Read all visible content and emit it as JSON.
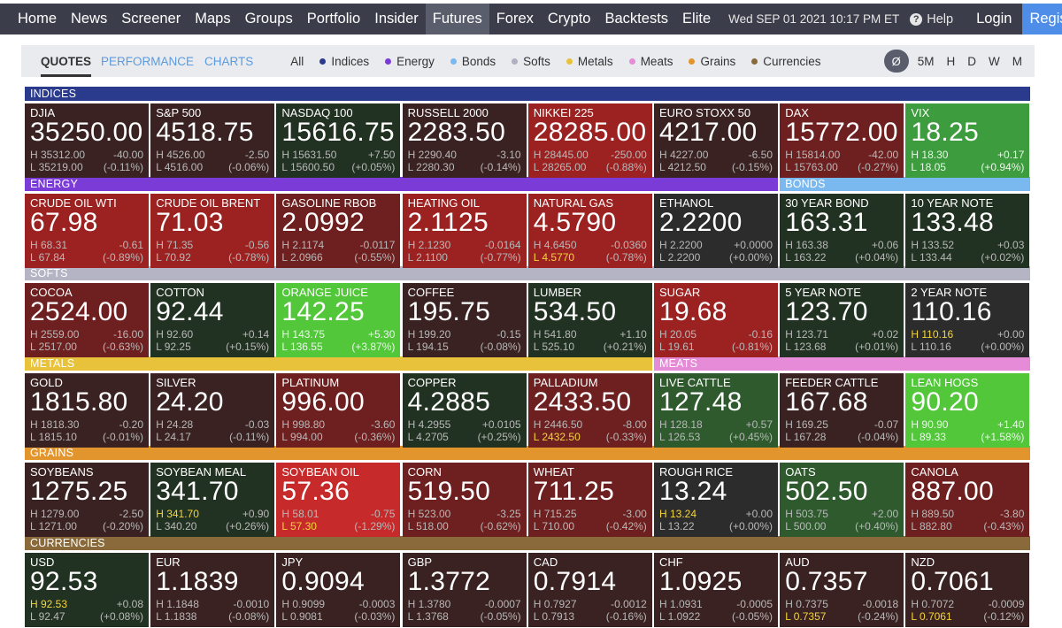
{
  "nav": {
    "items": [
      "Home",
      "News",
      "Screener",
      "Maps",
      "Groups",
      "Portfolio",
      "Insider",
      "Futures",
      "Forex",
      "Crypto",
      "Backtests",
      "Elite"
    ],
    "active": "Futures",
    "datetime": "Wed SEP 01 2021 10:17 PM ET",
    "help_label": "Help",
    "login_label": "Login",
    "register_label": "Register"
  },
  "tabs": {
    "quotes": "QUOTES",
    "performance": "PERFORMANCE",
    "charts": "CHARTS"
  },
  "filters": [
    {
      "label": "All",
      "color": ""
    },
    {
      "label": "Indices",
      "color": "#2a3a8c"
    },
    {
      "label": "Energy",
      "color": "#7a3bd6"
    },
    {
      "label": "Bonds",
      "color": "#7ab8f0"
    },
    {
      "label": "Softs",
      "color": "#b0b0c0"
    },
    {
      "label": "Metals",
      "color": "#e8c23a"
    },
    {
      "label": "Meats",
      "color": "#e58bd8"
    },
    {
      "label": "Grains",
      "color": "#e3952d"
    },
    {
      "label": "Currencies",
      "color": "#8a6a3a"
    }
  ],
  "timeframes": {
    "active": "Ø",
    "items": [
      "5M",
      "H",
      "D",
      "W",
      "M"
    ]
  },
  "colors": {
    "indices": "#2a3a8c",
    "energy": "#7a3bd6",
    "bonds": "#7ab8f0",
    "softs": "#b4b4c4",
    "metals": "#e8c23a",
    "meats": "#e58bd8",
    "grains": "#e3952d",
    "currencies": "#8a6a3a",
    "neutral": "#2c2c2c",
    "red_light": "#3a2222",
    "red_mid": "#6e1f1f",
    "red_strong": "#9c2222",
    "red_bright": "#c62a2a",
    "green_light": "#223222",
    "green_mid": "#2e5a2e",
    "green_strong": "#3d9c3d",
    "green_bright": "#52c73a"
  },
  "sections": [
    {
      "label": "INDICES",
      "color_key": "indices"
    },
    {
      "label": "ENERGY",
      "color_key": "energy"
    },
    {
      "label": "BONDS",
      "color_key": "bonds"
    },
    {
      "label": "SOFTS",
      "color_key": "softs"
    },
    {
      "label": "METALS",
      "color_key": "metals"
    },
    {
      "label": "MEATS",
      "color_key": "meats"
    },
    {
      "label": "GRAINS",
      "color_key": "grains"
    },
    {
      "label": "CURRENCIES",
      "color_key": "currencies"
    }
  ],
  "tiles": [
    {
      "name": "DJIA",
      "price": "35250.00",
      "high": "H 35312.00",
      "low": "L 35219.00",
      "change": "-40.00",
      "pct": "(-0.11%)",
      "tone": "red_light"
    },
    {
      "name": "S&P 500",
      "price": "4518.75",
      "high": "H 4526.00",
      "low": "L 4516.00",
      "change": "-2.50",
      "pct": "(-0.06%)",
      "tone": "red_light"
    },
    {
      "name": "NASDAQ 100",
      "price": "15616.75",
      "high": "H 15631.50",
      "low": "L 15600.50",
      "change": "+7.50",
      "pct": "(+0.05%)",
      "tone": "green_light"
    },
    {
      "name": "RUSSELL 2000",
      "price": "2283.50",
      "high": "H 2290.40",
      "low": "L 2280.30",
      "change": "-3.10",
      "pct": "(-0.14%)",
      "tone": "red_light"
    },
    {
      "name": "NIKKEI 225",
      "price": "28285.00",
      "high": "H 28445.00",
      "low": "L 28265.00",
      "change": "-250.00",
      "pct": "(-0.88%)",
      "tone": "red_strong"
    },
    {
      "name": "EURO STOXX 50",
      "price": "4217.00",
      "high": "H 4227.00",
      "low": "L 4212.50",
      "change": "-6.50",
      "pct": "(-0.15%)",
      "tone": "red_light"
    },
    {
      "name": "DAX",
      "price": "15772.00",
      "high": "H 15814.00",
      "low": "L 15763.00",
      "change": "-42.00",
      "pct": "(-0.27%)",
      "tone": "red_mid"
    },
    {
      "name": "VIX",
      "price": "18.25",
      "high": "H 18.30",
      "low": "L 18.05",
      "change": "+0.17",
      "pct": "(+0.94%)",
      "tone": "green_strong"
    },
    {
      "name": "CRUDE OIL WTI",
      "price": "67.98",
      "high": "H 68.31",
      "low": "L 67.84",
      "change": "-0.61",
      "pct": "(-0.89%)",
      "tone": "red_strong"
    },
    {
      "name": "CRUDE OIL BRENT",
      "price": "71.03",
      "high": "H 71.35",
      "low": "L 70.92",
      "change": "-0.56",
      "pct": "(-0.78%)",
      "tone": "red_strong"
    },
    {
      "name": "GASOLINE RBOB",
      "price": "2.0992",
      "high": "H 2.1174",
      "low": "L 2.0966",
      "change": "-0.0117",
      "pct": "(-0.55%)",
      "tone": "red_mid"
    },
    {
      "name": "HEATING OIL",
      "price": "2.1125",
      "high": "H 2.1230",
      "low": "L 2.1100",
      "change": "-0.0164",
      "pct": "(-0.77%)",
      "tone": "red_strong"
    },
    {
      "name": "NATURAL GAS",
      "price": "4.5790",
      "high": "H 4.6450",
      "low": "L 4.5770",
      "change": "-0.0360",
      "pct": "(-0.78%)",
      "tone": "red_strong",
      "low_hl": true
    },
    {
      "name": "ETHANOL",
      "price": "2.2200",
      "high": "H 2.2200",
      "low": "L 2.2200",
      "change": "+0.0000",
      "pct": "(+0.00%)",
      "tone": "neutral"
    },
    {
      "name": "30 YEAR BOND",
      "price": "163.31",
      "high": "H 163.38",
      "low": "L 163.22",
      "change": "+0.06",
      "pct": "(+0.04%)",
      "tone": "green_light"
    },
    {
      "name": "10 YEAR NOTE",
      "price": "133.48",
      "high": "H 133.52",
      "low": "L 133.44",
      "change": "+0.03",
      "pct": "(+0.02%)",
      "tone": "green_light"
    },
    {
      "name": "COCOA",
      "price": "2524.00",
      "high": "H 2559.00",
      "low": "L 2517.00",
      "change": "-16.00",
      "pct": "(-0.63%)",
      "tone": "red_mid"
    },
    {
      "name": "COTTON",
      "price": "92.44",
      "high": "H 92.60",
      "low": "L 92.25",
      "change": "+0.14",
      "pct": "(+0.15%)",
      "tone": "green_light"
    },
    {
      "name": "ORANGE JUICE",
      "price": "142.25",
      "high": "H 143.75",
      "low": "L 136.55",
      "change": "+5.30",
      "pct": "(+3.87%)",
      "tone": "green_bright"
    },
    {
      "name": "COFFEE",
      "price": "195.75",
      "high": "H 199.20",
      "low": "L 194.15",
      "change": "-0.15",
      "pct": "(-0.08%)",
      "tone": "red_light"
    },
    {
      "name": "LUMBER",
      "price": "534.50",
      "high": "H 541.80",
      "low": "L 525.10",
      "change": "+1.10",
      "pct": "(+0.21%)",
      "tone": "green_light"
    },
    {
      "name": "SUGAR",
      "price": "19.68",
      "high": "H 20.05",
      "low": "L 19.61",
      "change": "-0.16",
      "pct": "(-0.81%)",
      "tone": "red_strong"
    },
    {
      "name": "5 YEAR NOTE",
      "price": "123.70",
      "high": "H 123.71",
      "low": "L 123.68",
      "change": "+0.02",
      "pct": "(+0.01%)",
      "tone": "green_light"
    },
    {
      "name": "2 YEAR NOTE",
      "price": "110.16",
      "high": "H 110.16",
      "low": "L 110.16",
      "change": "+0.00",
      "pct": "(+0.00%)",
      "tone": "neutral",
      "high_hl": true
    },
    {
      "name": "GOLD",
      "price": "1815.80",
      "high": "H 1818.30",
      "low": "L 1815.10",
      "change": "-0.20",
      "pct": "(-0.01%)",
      "tone": "red_light"
    },
    {
      "name": "SILVER",
      "price": "24.20",
      "high": "H 24.28",
      "low": "L 24.17",
      "change": "-0.03",
      "pct": "(-0.11%)",
      "tone": "red_light"
    },
    {
      "name": "PLATINUM",
      "price": "996.00",
      "high": "H 998.80",
      "low": "L 994.00",
      "change": "-3.60",
      "pct": "(-0.36%)",
      "tone": "red_mid"
    },
    {
      "name": "COPPER",
      "price": "4.2885",
      "high": "H 4.2955",
      "low": "L 4.2705",
      "change": "+0.0105",
      "pct": "(+0.25%)",
      "tone": "green_light"
    },
    {
      "name": "PALLADIUM",
      "price": "2433.50",
      "high": "H 2446.50",
      "low": "L 2432.50",
      "change": "-8.00",
      "pct": "(-0.33%)",
      "tone": "red_mid",
      "low_hl": true
    },
    {
      "name": "LIVE CATTLE",
      "price": "127.48",
      "high": "H 128.18",
      "low": "L 126.53",
      "change": "+0.57",
      "pct": "(+0.45%)",
      "tone": "green_mid"
    },
    {
      "name": "FEEDER CATTLE",
      "price": "167.68",
      "high": "H 169.25",
      "low": "L 167.28",
      "change": "-0.07",
      "pct": "(-0.04%)",
      "tone": "red_light"
    },
    {
      "name": "LEAN HOGS",
      "price": "90.20",
      "high": "H 90.90",
      "low": "L 89.33",
      "change": "+1.40",
      "pct": "(+1.58%)",
      "tone": "green_bright"
    },
    {
      "name": "SOYBEANS",
      "price": "1275.25",
      "high": "H 1279.00",
      "low": "L 1271.00",
      "change": "-2.50",
      "pct": "(-0.20%)",
      "tone": "red_light"
    },
    {
      "name": "SOYBEAN MEAL",
      "price": "341.70",
      "high": "H 341.70",
      "low": "L 340.20",
      "change": "+0.90",
      "pct": "(+0.26%)",
      "tone": "green_light",
      "high_hl": true
    },
    {
      "name": "SOYBEAN OIL",
      "price": "57.36",
      "high": "H 58.01",
      "low": "L 57.30",
      "change": "-0.75",
      "pct": "(-1.29%)",
      "tone": "red_bright",
      "low_hl": true
    },
    {
      "name": "CORN",
      "price": "519.50",
      "high": "H 523.00",
      "low": "L 518.00",
      "change": "-3.25",
      "pct": "(-0.62%)",
      "tone": "red_mid"
    },
    {
      "name": "WHEAT",
      "price": "711.25",
      "high": "H 715.25",
      "low": "L 710.00",
      "change": "-3.00",
      "pct": "(-0.42%)",
      "tone": "red_mid"
    },
    {
      "name": "ROUGH RICE",
      "price": "13.24",
      "high": "H 13.24",
      "low": "L 13.22",
      "change": "+0.00",
      "pct": "(+0.00%)",
      "tone": "neutral",
      "high_hl": true
    },
    {
      "name": "OATS",
      "price": "502.50",
      "high": "H 503.75",
      "low": "L 500.00",
      "change": "+2.00",
      "pct": "(+0.40%)",
      "tone": "green_mid"
    },
    {
      "name": "CANOLA",
      "price": "887.00",
      "high": "H 889.50",
      "low": "L 882.80",
      "change": "-3.80",
      "pct": "(-0.43%)",
      "tone": "red_mid"
    },
    {
      "name": "USD",
      "price": "92.53",
      "high": "H 92.53",
      "low": "L 92.47",
      "change": "+0.08",
      "pct": "(+0.08%)",
      "tone": "green_light",
      "high_hl": true
    },
    {
      "name": "EUR",
      "price": "1.1839",
      "high": "H 1.1848",
      "low": "L 1.1838",
      "change": "-0.0010",
      "pct": "(-0.08%)",
      "tone": "red_light"
    },
    {
      "name": "JPY",
      "price": "0.9094",
      "high": "H 0.9099",
      "low": "L 0.9081",
      "change": "-0.0003",
      "pct": "(-0.03%)",
      "tone": "red_light"
    },
    {
      "name": "GBP",
      "price": "1.3772",
      "high": "H 1.3780",
      "low": "L 1.3768",
      "change": "-0.0007",
      "pct": "(-0.05%)",
      "tone": "red_light"
    },
    {
      "name": "CAD",
      "price": "0.7914",
      "high": "H 0.7927",
      "low": "L 0.7913",
      "change": "-0.0012",
      "pct": "(-0.16%)",
      "tone": "red_light"
    },
    {
      "name": "CHF",
      "price": "1.0925",
      "high": "H 1.0931",
      "low": "L 1.0922",
      "change": "-0.0005",
      "pct": "(-0.05%)",
      "tone": "red_light"
    },
    {
      "name": "AUD",
      "price": "0.7357",
      "high": "H 0.7375",
      "low": "L 0.7357",
      "change": "-0.0018",
      "pct": "(-0.24%)",
      "tone": "red_light",
      "low_hl": true
    },
    {
      "name": "NZD",
      "price": "0.7061",
      "high": "H 0.7072",
      "low": "L 0.7061",
      "change": "-0.0009",
      "pct": "(-0.12%)",
      "tone": "red_light",
      "low_hl": true
    }
  ]
}
